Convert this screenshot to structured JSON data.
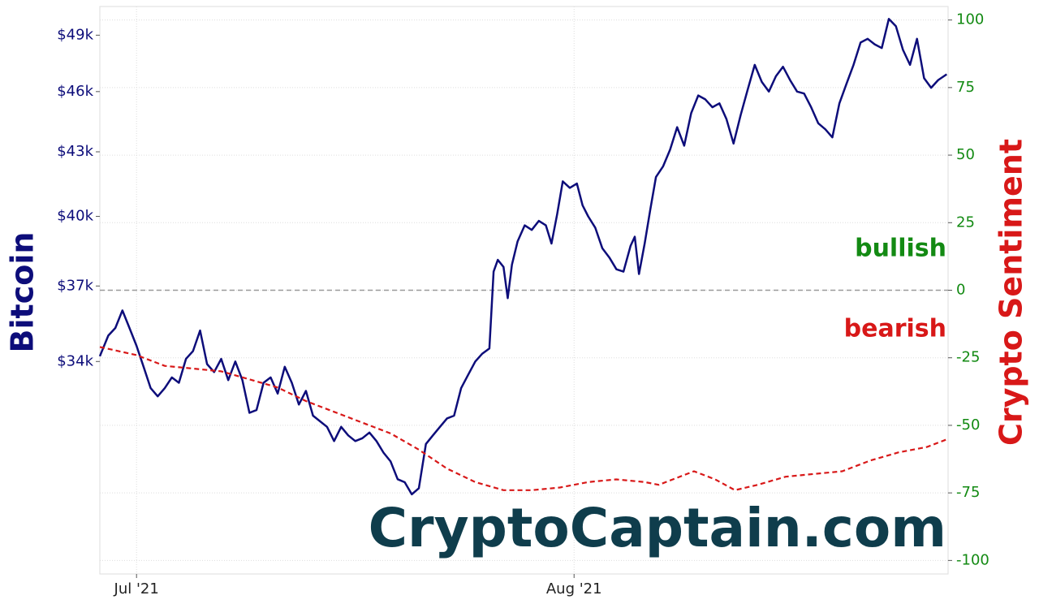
{
  "chart_data": {
    "type": "line",
    "ylabel": "Bitcoin",
    "y2label": "Crypto Sentiment",
    "annotations": [
      {
        "text": "bullish",
        "color": "#138a13"
      },
      {
        "text": "bearish",
        "color": "#d81818"
      }
    ],
    "watermark": "CryptoCaptain.com",
    "log_y": true,
    "grid": true,
    "ylim": [
      26800,
      50600
    ],
    "yticks": [
      {
        "value": 34000,
        "label": "$34k"
      },
      {
        "value": 37000,
        "label": "$37k"
      },
      {
        "value": 40000,
        "label": "$40k"
      },
      {
        "value": 43000,
        "label": "$43k"
      },
      {
        "value": 46000,
        "label": "$46k"
      },
      {
        "value": 49000,
        "label": "$49k"
      }
    ],
    "y2lim": [
      -105,
      105
    ],
    "y2ticks": [
      -100,
      -75,
      -50,
      -25,
      0,
      25,
      50,
      75,
      100
    ],
    "hline_y2": 0,
    "xlim": [
      -2.6,
      57.5
    ],
    "xticks": [
      {
        "value": 0,
        "label": "Jul '21"
      },
      {
        "value": 31,
        "label": "Aug '21"
      }
    ],
    "series": [
      {
        "color": "#0d0d7a",
        "axis": "y",
        "dashed": false,
        "x": [
          -2.6,
          -2,
          -1.5,
          -1,
          -0.5,
          0,
          0.5,
          1,
          1.5,
          2,
          2.5,
          3,
          3.5,
          4,
          4.5,
          5,
          5.5,
          6,
          6.5,
          7,
          7.5,
          8,
          8.5,
          9,
          9.5,
          10,
          10.5,
          11,
          11.5,
          12,
          12.5,
          13,
          13.5,
          14,
          14.5,
          15,
          15.5,
          16,
          16.5,
          17,
          17.5,
          18,
          18.5,
          19,
          19.5,
          20,
          20.5,
          21,
          21.5,
          22,
          22.5,
          23,
          23.5,
          24,
          24.5,
          25,
          25.3,
          25.6,
          26,
          26.3,
          26.6,
          27,
          27.5,
          28,
          28.5,
          29,
          29.4,
          29.8,
          30.2,
          30.7,
          31.2,
          31.6,
          32,
          32.5,
          33,
          33.5,
          34,
          34.5,
          35,
          35.3,
          35.6,
          36,
          36.4,
          36.8,
          37.3,
          37.8,
          38.3,
          38.8,
          39.3,
          39.8,
          40.3,
          40.8,
          41.3,
          41.8,
          42.3,
          42.8,
          43.3,
          43.8,
          44.3,
          44.8,
          45.3,
          45.8,
          46.3,
          46.8,
          47.3,
          47.8,
          48.3,
          48.8,
          49.3,
          49.8,
          50.3,
          50.8,
          51.3,
          51.8,
          52.3,
          52.8,
          53.3,
          53.8,
          54.3,
          54.8,
          55.3,
          55.8,
          56.3,
          56.8,
          57.4
        ],
        "values": [
          34200,
          35000,
          35300,
          36000,
          35300,
          34600,
          33800,
          33000,
          32700,
          33000,
          33400,
          33200,
          34100,
          34400,
          35200,
          33900,
          33600,
          34100,
          33300,
          34000,
          33300,
          32100,
          32200,
          33200,
          33400,
          32800,
          33800,
          33200,
          32400,
          32900,
          32000,
          31800,
          31600,
          31100,
          31600,
          31300,
          31100,
          31200,
          31400,
          31100,
          30700,
          30400,
          29800,
          29700,
          29300,
          29500,
          31000,
          31300,
          31600,
          31900,
          32000,
          33000,
          33500,
          34000,
          34300,
          34500,
          37600,
          38100,
          37800,
          36500,
          37900,
          38900,
          39600,
          39400,
          39800,
          39600,
          38800,
          40100,
          41600,
          41300,
          41500,
          40500,
          40000,
          39500,
          38600,
          38200,
          37700,
          37600,
          38700,
          39100,
          37500,
          38800,
          40300,
          41800,
          42300,
          43100,
          44200,
          43300,
          44900,
          45800,
          45600,
          45200,
          45400,
          44600,
          43400,
          44800,
          46100,
          47400,
          46500,
          46000,
          46800,
          47300,
          46600,
          46000,
          45900,
          45200,
          44400,
          44100,
          43700,
          45400,
          46400,
          47400,
          48600,
          48800,
          48500,
          48300,
          49900,
          49500,
          48200,
          47400,
          48800,
          46700,
          46200,
          46600,
          46900
        ]
      },
      {
        "color": "#d81818",
        "axis": "y2",
        "dashed": true,
        "x": [
          -2.6,
          0,
          2,
          4,
          6,
          8,
          10,
          12,
          14,
          16,
          18,
          20,
          22,
          24,
          26,
          28,
          30,
          32,
          34,
          36,
          37,
          38,
          39.5,
          41,
          42.4,
          44,
          46,
          48,
          50,
          52,
          54,
          56,
          57.5
        ],
        "values": [
          -21,
          -24,
          -28,
          -29,
          -30,
          -33,
          -36,
          -41,
          -45,
          -49,
          -53,
          -59,
          -66,
          -71,
          -74,
          -74,
          -73,
          -71,
          -70,
          -71,
          -72,
          -70,
          -67,
          -70,
          -74,
          -72,
          -69,
          -68,
          -67,
          -63,
          -60,
          -58,
          -55
        ]
      }
    ]
  }
}
